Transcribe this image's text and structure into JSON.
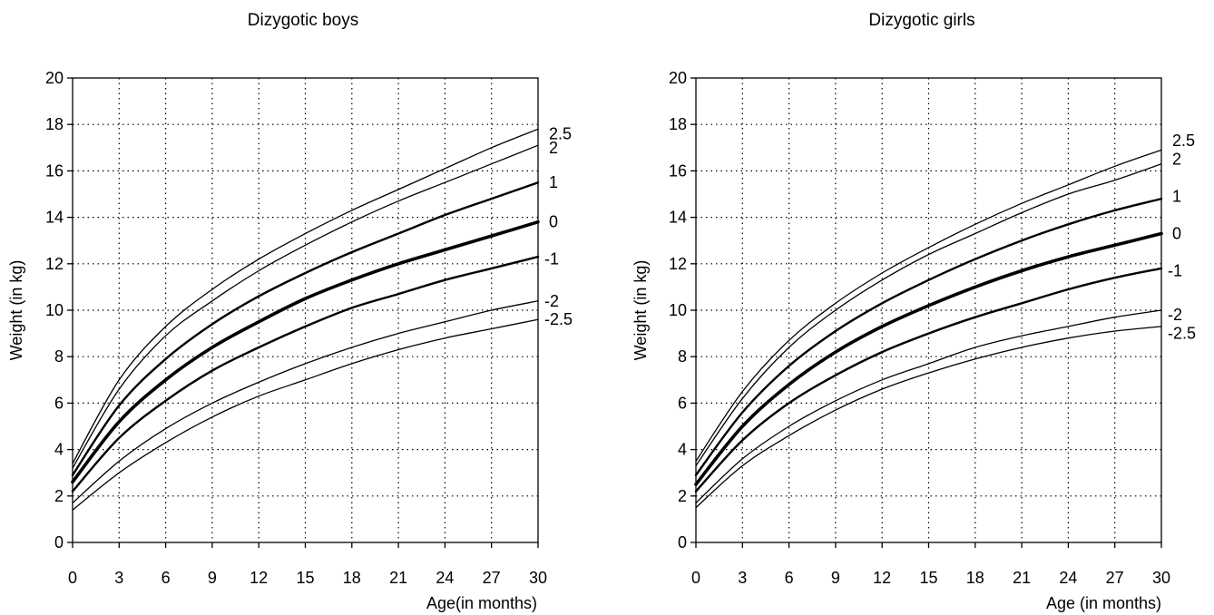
{
  "chart_data": [
    {
      "type": "line",
      "title": "Dizygotic boys",
      "xlabel": "Age(in months)",
      "ylabel": "Weight (in kg)",
      "xlim": [
        0,
        30
      ],
      "ylim": [
        0,
        20
      ],
      "xticks": [
        "0",
        "3",
        "6",
        "9",
        "12",
        "15",
        "18",
        "21",
        "24",
        "27",
        "30"
      ],
      "yticks": [
        "0",
        "2",
        "4",
        "6",
        "8",
        "10",
        "12",
        "14",
        "16",
        "18",
        "20"
      ],
      "grid": true,
      "x": [
        0,
        3,
        6,
        9,
        12,
        15,
        18,
        21,
        24,
        27,
        30
      ],
      "series": [
        {
          "name": "2.5",
          "values": [
            3.4,
            7.0,
            9.3,
            10.9,
            12.2,
            13.3,
            14.3,
            15.2,
            16.1,
            17.0,
            17.8
          ],
          "label_y": 17.6
        },
        {
          "name": "2",
          "values": [
            3.2,
            6.6,
            8.9,
            10.4,
            11.7,
            12.8,
            13.8,
            14.7,
            15.5,
            16.3,
            17.1
          ],
          "label_y": 17.0
        },
        {
          "name": "1",
          "values": [
            2.9,
            5.9,
            7.9,
            9.4,
            10.6,
            11.6,
            12.5,
            13.3,
            14.1,
            14.8,
            15.5
          ],
          "label_y": 15.5
        },
        {
          "name": "0",
          "values": [
            2.6,
            5.2,
            7.0,
            8.4,
            9.5,
            10.5,
            11.3,
            12.0,
            12.6,
            13.2,
            13.8
          ],
          "label_y": 13.8
        },
        {
          "name": "-1",
          "values": [
            2.2,
            4.5,
            6.1,
            7.4,
            8.4,
            9.3,
            10.1,
            10.7,
            11.3,
            11.8,
            12.3
          ],
          "label_y": 12.2
        },
        {
          "name": "-2",
          "values": [
            1.7,
            3.5,
            4.9,
            6.0,
            6.9,
            7.7,
            8.4,
            9.0,
            9.5,
            10.0,
            10.4
          ],
          "label_y": 10.4
        },
        {
          "name": "-2.5",
          "values": [
            1.4,
            3.0,
            4.3,
            5.4,
            6.3,
            7.0,
            7.7,
            8.3,
            8.8,
            9.2,
            9.6
          ],
          "label_y": 9.6
        }
      ]
    },
    {
      "type": "line",
      "title": "Dizygotic girls",
      "xlabel": "Age (in months)",
      "ylabel": "Weight (in kg)",
      "xlim": [
        0,
        30
      ],
      "ylim": [
        0,
        20
      ],
      "xticks": [
        "0",
        "3",
        "6",
        "9",
        "12",
        "15",
        "18",
        "21",
        "24",
        "27",
        "30"
      ],
      "yticks": [
        "0",
        "2",
        "4",
        "6",
        "8",
        "10",
        "12",
        "14",
        "16",
        "18",
        "20"
      ],
      "grid": true,
      "x": [
        0,
        3,
        6,
        9,
        12,
        15,
        18,
        21,
        24,
        27,
        30
      ],
      "series": [
        {
          "name": "2.5",
          "values": [
            3.5,
            6.5,
            8.7,
            10.3,
            11.6,
            12.7,
            13.7,
            14.6,
            15.4,
            16.2,
            16.9
          ],
          "label_y": 17.3
        },
        {
          "name": "2",
          "values": [
            3.3,
            6.2,
            8.4,
            10.0,
            11.3,
            12.4,
            13.3,
            14.2,
            15.0,
            15.6,
            16.3
          ],
          "label_y": 16.5
        },
        {
          "name": "1",
          "values": [
            2.9,
            5.6,
            7.6,
            9.1,
            10.3,
            11.3,
            12.2,
            13.0,
            13.7,
            14.3,
            14.8
          ],
          "label_y": 14.9
        },
        {
          "name": "0",
          "values": [
            2.5,
            5.0,
            6.8,
            8.2,
            9.3,
            10.2,
            11.0,
            11.7,
            12.3,
            12.8,
            13.3
          ],
          "label_y": 13.3
        },
        {
          "name": "-1",
          "values": [
            2.2,
            4.4,
            6.0,
            7.2,
            8.2,
            9.0,
            9.7,
            10.3,
            10.9,
            11.4,
            11.8
          ],
          "label_y": 11.7
        },
        {
          "name": "-2",
          "values": [
            1.7,
            3.6,
            5.0,
            6.1,
            7.0,
            7.7,
            8.4,
            8.9,
            9.3,
            9.7,
            10.0
          ],
          "label_y": 9.8
        },
        {
          "name": "-2.5",
          "values": [
            1.5,
            3.3,
            4.6,
            5.7,
            6.6,
            7.3,
            7.9,
            8.4,
            8.8,
            9.1,
            9.3
          ],
          "label_y": 9.0
        }
      ]
    }
  ]
}
